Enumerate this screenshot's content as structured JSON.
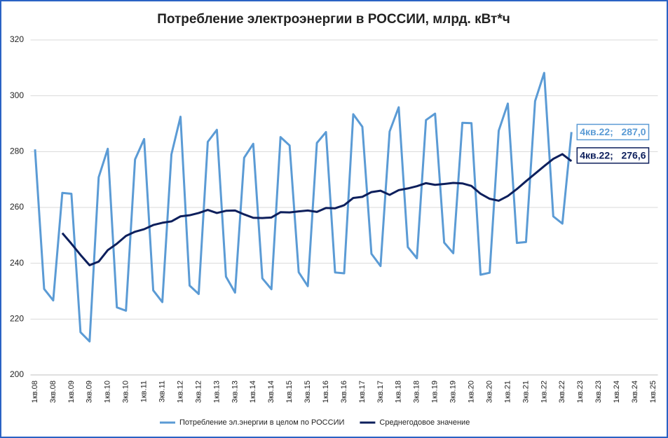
{
  "chart_data": {
    "type": "line",
    "title": "Потребление электроэнергии в РОССИИ, млрд. кВт*ч",
    "categories": [
      "1кв.08",
      null,
      "3кв.08",
      null,
      "1кв.09",
      null,
      "3кв.09",
      null,
      "1кв.10",
      null,
      "3кв.10",
      null,
      "1кв.11",
      null,
      "3кв.11",
      null,
      "1кв.12",
      null,
      "3кв.12",
      null,
      "1кв.13",
      null,
      "3кв.13",
      null,
      "1кв.14",
      null,
      "3кв.14",
      null,
      "1кв.15",
      null,
      "3кв.15",
      null,
      "1кв.16",
      null,
      "3кв.16",
      null,
      "1кв.17",
      null,
      "3кв.17",
      null,
      "1кв.18",
      null,
      "3кв.18",
      null,
      "1кв.19",
      null,
      "3кв.19",
      null,
      "1кв.20",
      null,
      "3кв.20",
      null,
      "1кв.21",
      null,
      "3кв.21",
      null,
      "1кв.22",
      null,
      "3кв.22",
      null,
      "1кв.23",
      null,
      "3кв.23",
      null,
      "1кв.24",
      null,
      "3кв.24",
      null,
      "1кв.25"
    ],
    "series": [
      {
        "name": "Потребление эл.энергии в целом по РОССИИ",
        "color": "#5b9bd5",
        "values": [
          280.8,
          230.8,
          226.7,
          265.2,
          264.9,
          215.3,
          212.0,
          270.8,
          281.0,
          224.2,
          223.0,
          277.2,
          284.5,
          230.3,
          226.1,
          279.0,
          292.5,
          232.0,
          229.0,
          283.5,
          287.8,
          235.2,
          229.5,
          277.8,
          282.8,
          234.6,
          230.7,
          285.2,
          282.2,
          236.8,
          231.8,
          283.1,
          287.0,
          236.7,
          236.4,
          293.4,
          288.9,
          243.4,
          239.0,
          287.2,
          295.9,
          245.8,
          241.8,
          291.3,
          293.6,
          247.4,
          243.6,
          290.3,
          290.2,
          235.9,
          236.6,
          287.5,
          297.2,
          247.3,
          247.6,
          298.1,
          308.2,
          256.8,
          254.2,
          287.0,
          null,
          null,
          null,
          null,
          null,
          null,
          null,
          null,
          null
        ]
      },
      {
        "name": "Среднегодовое значение",
        "color": "#0d1f5c",
        "values": [
          null,
          null,
          null,
          250.8,
          247.0,
          243.0,
          239.3,
          240.6,
          244.7,
          247.0,
          249.8,
          251.3,
          252.2,
          253.7,
          254.5,
          255.0,
          256.8,
          257.2,
          258.0,
          259.1,
          258.0,
          258.8,
          258.9,
          257.5,
          256.3,
          256.2,
          256.4,
          258.3,
          258.2,
          258.6,
          258.9,
          258.4,
          259.8,
          259.7,
          260.8,
          263.4,
          263.8,
          265.5,
          266.0,
          264.5,
          266.2,
          266.8,
          267.6,
          268.7,
          268.1,
          268.4,
          268.8,
          268.6,
          267.7,
          264.9,
          263.1,
          262.4,
          264.1,
          266.6,
          269.4,
          272.1,
          274.8,
          277.4,
          279.1,
          276.6,
          null,
          null,
          null,
          null,
          null,
          null,
          null,
          null,
          null
        ]
      }
    ],
    "annotations": [
      "4кв.22;   287,0",
      "4кв.22;   276,6"
    ],
    "ylim": [
      200,
      320
    ],
    "yticks": [
      200,
      220,
      240,
      260,
      280,
      300,
      320
    ],
    "grid": true
  }
}
